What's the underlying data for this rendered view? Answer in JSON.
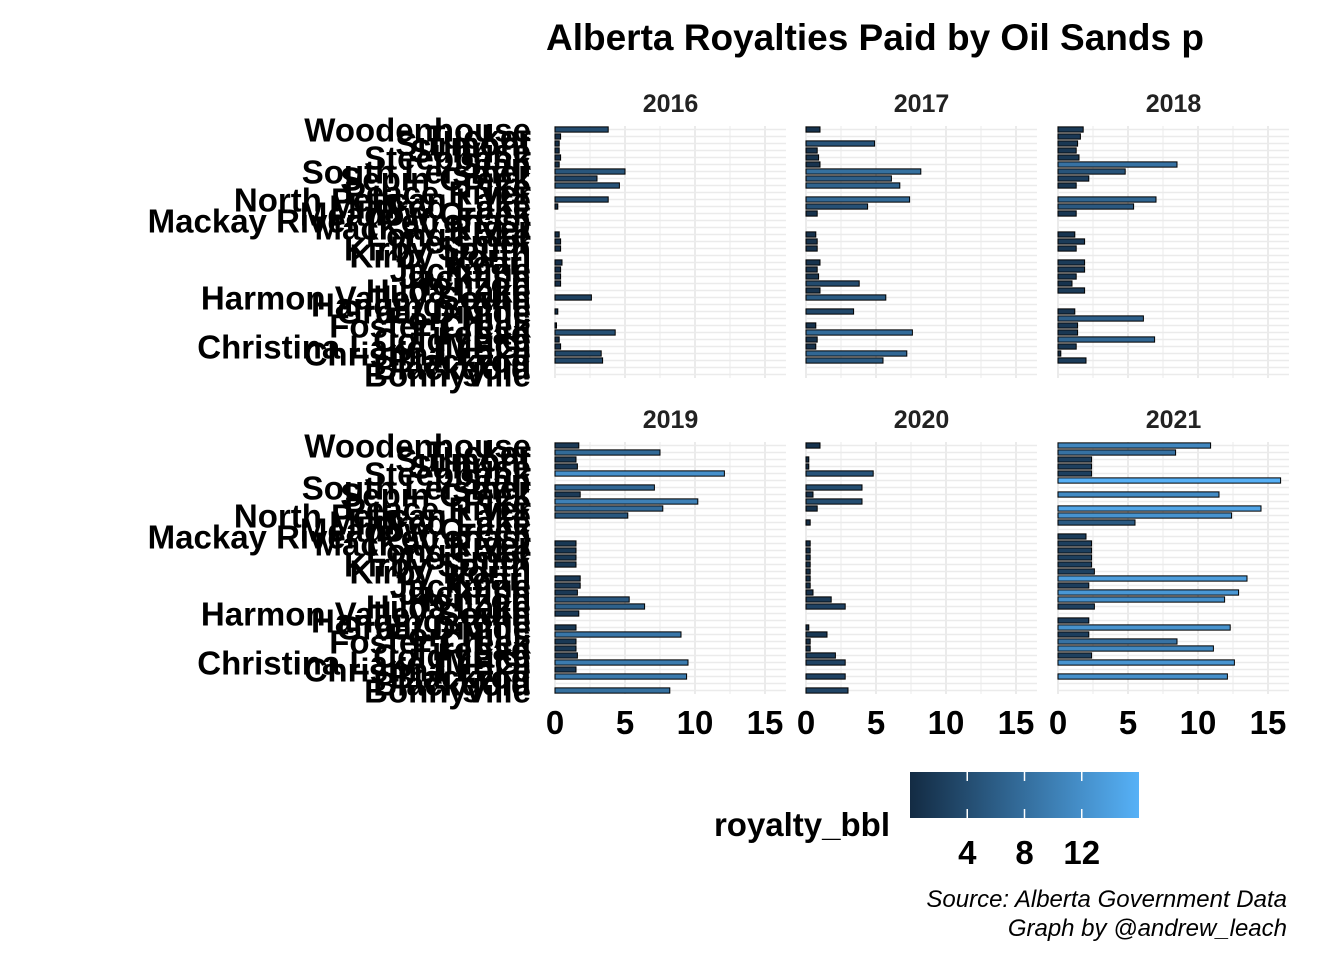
{
  "chart_data": {
    "type": "bar",
    "orientation": "horizontal",
    "facet_by": "year",
    "title": "Alberta Royalties Paid by Oil Sands p",
    "categories": [
      "Woodenhouse",
      "Tucker",
      "Surmont",
      "Sunrise",
      "Steepbank",
      "Stan",
      "South Leismer",
      "Sepin Creek",
      "Pike",
      "Peace River",
      "North Pelican Lake",
      "Mildred Lake",
      "Meadow Creek",
      "Mackay River (Petronas)",
      "MacKay River",
      "Long Lake",
      "Leismer",
      "Kirby South",
      "Kirby North",
      "Kearl",
      "Jackpine",
      "Jackfish",
      "Horizon",
      "Hilda Lake",
      "Harmon Valley South",
      "Hangingstone",
      "Great Divide",
      "Fort Hills",
      "Foster Creek",
      "Firebag",
      "Cold Lake",
      "Christina Lake (MEG)",
      "Christina Lake",
      "Blackrod",
      "Blackgold",
      "Bonnyville"
    ],
    "facets": [
      {
        "year": "2016",
        "values": [
          3.8,
          0.4,
          0.3,
          0.3,
          0.4,
          0.3,
          5.0,
          3.0,
          4.6,
          0.0,
          3.8,
          0.2,
          0.0,
          0.0,
          0.0,
          0.3,
          0.4,
          0.4,
          0.0,
          0.5,
          0.4,
          0.4,
          0.4,
          0.0,
          2.6,
          0.0,
          0.2,
          0.0,
          0.1,
          4.3,
          0.3,
          0.4,
          3.3,
          3.4,
          0.0,
          0.0
        ]
      },
      {
        "year": "2017",
        "values": [
          1.0,
          0.0,
          4.9,
          0.8,
          0.9,
          1.0,
          8.2,
          6.1,
          6.7,
          0.0,
          7.4,
          4.4,
          0.8,
          0.0,
          0.0,
          0.7,
          0.8,
          0.8,
          0.0,
          1.0,
          0.8,
          0.9,
          3.8,
          1.0,
          5.7,
          0.0,
          3.4,
          0.0,
          0.7,
          7.6,
          0.8,
          0.7,
          7.2,
          5.5,
          0.0,
          0.0
        ]
      },
      {
        "year": "2018",
        "values": [
          1.8,
          1.6,
          1.4,
          1.3,
          1.5,
          8.5,
          4.8,
          2.2,
          1.3,
          0.0,
          7.0,
          5.4,
          1.3,
          0.0,
          0.0,
          1.2,
          1.9,
          1.3,
          0.0,
          1.9,
          1.9,
          1.3,
          1.0,
          1.9,
          0.0,
          0.0,
          1.2,
          6.1,
          1.4,
          1.4,
          6.9,
          1.3,
          0.2,
          2.0,
          0.0,
          0.0
        ]
      },
      {
        "year": "2019",
        "values": [
          1.7,
          7.5,
          1.5,
          1.6,
          12.1,
          0.0,
          7.1,
          1.8,
          10.2,
          7.7,
          5.2,
          0.0,
          0.0,
          0.0,
          1.5,
          1.5,
          1.5,
          1.5,
          0.0,
          1.8,
          1.8,
          1.6,
          5.3,
          6.4,
          1.7,
          0.0,
          1.5,
          9.0,
          1.5,
          1.5,
          1.6,
          9.5,
          1.5,
          9.4,
          0.0,
          8.2
        ]
      },
      {
        "year": "2020",
        "values": [
          1.0,
          0.0,
          0.2,
          0.2,
          4.8,
          0.0,
          4.0,
          0.5,
          4.0,
          0.8,
          0.0,
          0.3,
          0.0,
          0.0,
          0.3,
          0.3,
          0.3,
          0.3,
          0.3,
          0.3,
          0.3,
          0.5,
          1.8,
          2.8,
          0.0,
          0.0,
          0.2,
          1.5,
          0.3,
          0.3,
          2.1,
          2.8,
          0.0,
          2.8,
          0.0,
          3.0
        ]
      },
      {
        "year": "2021",
        "values": [
          10.9,
          8.4,
          2.4,
          2.4,
          2.4,
          15.9,
          0.0,
          11.5,
          0.0,
          14.5,
          12.4,
          5.5,
          0.0,
          2.0,
          2.4,
          2.4,
          2.4,
          2.4,
          2.6,
          13.5,
          2.2,
          12.9,
          11.9,
          2.6,
          0.0,
          2.2,
          12.3,
          2.2,
          8.5,
          11.1,
          2.4,
          12.6,
          0.0,
          12.1,
          0.0,
          0.0
        ]
      }
    ],
    "xlim": [
      0,
      16.5
    ],
    "xticks": [
      0,
      5,
      10,
      15
    ],
    "grid": true,
    "fill_scale": {
      "title": "royalty_bbl",
      "low_color": "#132B43",
      "high_color": "#56B1F7",
      "range": [
        0.0,
        16.0
      ],
      "ticks": [
        4,
        8,
        12
      ]
    },
    "legend_position": "bottom",
    "caption": [
      "Source: Alberta Government Data",
      "Graph by @andrew_leach"
    ]
  },
  "colors": {
    "grid": "#ebebeb",
    "bar_outline": "#000000"
  }
}
